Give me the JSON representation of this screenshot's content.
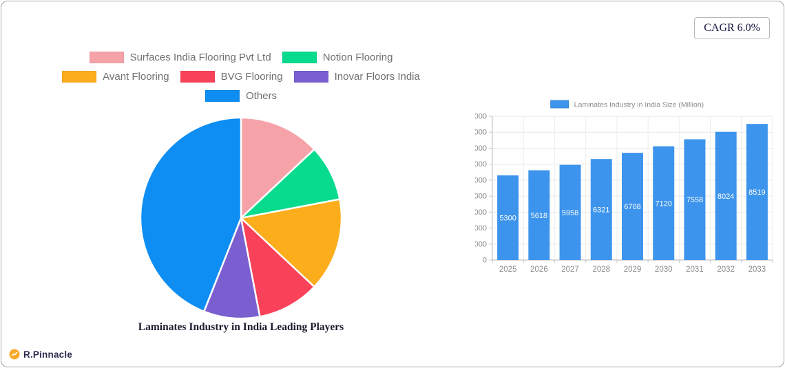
{
  "badge": {
    "label": "CAGR 6.0%"
  },
  "brand": {
    "name": "R.Pinnacle",
    "icon": "growth-arrow-icon",
    "icon_color": "#F9A928"
  },
  "chart_data": [
    {
      "type": "pie",
      "title": "Laminates Industry in India Leading Players",
      "labels": [
        "Surfaces India Flooring Pvt Ltd",
        "Notion Flooring",
        "Avant Flooring",
        "BVG Flooring",
        "Inovar Floors India",
        "Others"
      ],
      "values": [
        13,
        9,
        15,
        10,
        9,
        44
      ],
      "unit": "percent-share",
      "colors": [
        "#F5A3A9",
        "#09DB8E",
        "#FBAD1B",
        "#F9415A",
        "#7A5FD0",
        "#0E8EF2"
      ],
      "start_angle_deg": 0,
      "direction": "clockwise",
      "legend_position": "top",
      "slice_border_color": "#ffffff"
    },
    {
      "type": "bar",
      "legend": "Laminates Industry in India Size (Million)",
      "categories": [
        "2025",
        "2026",
        "2027",
        "2028",
        "2029",
        "2030",
        "2031",
        "2032",
        "2033"
      ],
      "values": [
        5300,
        5618,
        5958,
        6321,
        6708,
        7120,
        7558,
        8024,
        8519
      ],
      "ylim": [
        0,
        9000
      ],
      "ytick_step": 1000,
      "bar_color": "#3D94EC",
      "grid": true,
      "value_label_color": "#ffffff",
      "axis_text_color": "#8a8a8a",
      "legend_text_color": "#8a8a8a"
    }
  ]
}
